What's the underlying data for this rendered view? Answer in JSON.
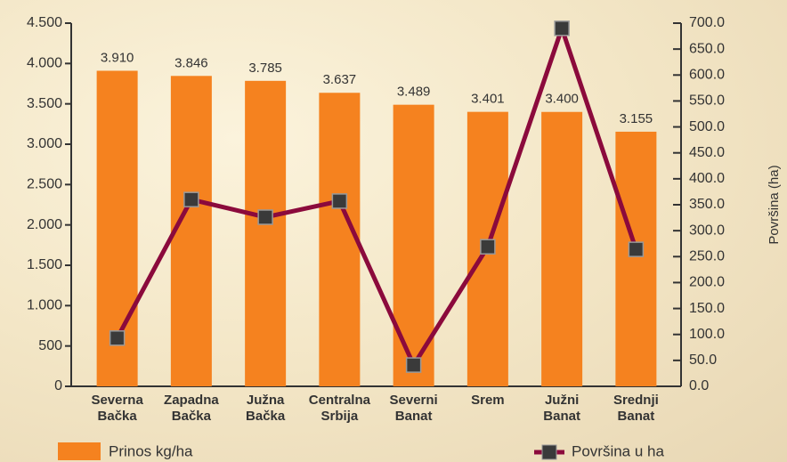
{
  "chart_data": {
    "type": "bar",
    "categories": [
      "Severna Bačka",
      "Zapadna Bačka",
      "Južna Bačka",
      "Centralna Srbija",
      "Severni Banat",
      "Srem",
      "Južni Banat",
      "Srednji Banat"
    ],
    "series": [
      {
        "name": "Prinos kg/ha",
        "type": "bar",
        "color": "#f5821f",
        "values": [
          3910,
          3846,
          3785,
          3637,
          3489,
          3401,
          3400,
          3155
        ],
        "value_labels": [
          "3.910",
          "3.846",
          "3.785",
          "3.637",
          "3.489",
          "3.401",
          "3.400",
          "3.155"
        ]
      },
      {
        "name": "Površina u ha",
        "type": "line",
        "axis": "y2",
        "color": "#8b0a3c",
        "marker_color": "#3a3a3a",
        "values": [
          93,
          360,
          326,
          357,
          41,
          269,
          690,
          264
        ]
      }
    ],
    "ylim": [
      0,
      4500
    ],
    "yticks": [
      0,
      500,
      {
        "value": 1000,
        "label": "1.000"
      },
      {
        "value": 1500,
        "label": "1.500"
      },
      {
        "value": 2000,
        "label": "2.000"
      },
      {
        "value": 2500,
        "label": "2.500"
      },
      {
        "value": 3000,
        "label": "3.000"
      },
      {
        "value": 3500,
        "label": "3.500"
      },
      {
        "value": 4000,
        "label": "4.000"
      },
      {
        "value": 4500,
        "label": "4.500"
      }
    ],
    "y2lim": [
      0,
      700
    ],
    "y2ticks": [
      {
        "value": 0,
        "label": "0.0"
      },
      {
        "value": 50,
        "label": "50.0"
      },
      {
        "value": 100,
        "label": "100.0"
      },
      {
        "value": 150,
        "label": "150.0"
      },
      {
        "value": 200,
        "label": "200.0"
      },
      {
        "value": 250,
        "label": "250.0"
      },
      {
        "value": 300,
        "label": "300.0"
      },
      {
        "value": 350,
        "label": "350.0"
      },
      {
        "value": 400,
        "label": "400.0"
      },
      {
        "value": 450,
        "label": "450.0"
      },
      {
        "value": 500,
        "label": "500.0"
      },
      {
        "value": 550,
        "label": "550.0"
      },
      {
        "value": 600,
        "label": "600.0"
      },
      {
        "value": 650,
        "label": "650.0"
      },
      {
        "value": 700,
        "label": "700.0"
      }
    ],
    "y2label": "Površina (ha)"
  }
}
